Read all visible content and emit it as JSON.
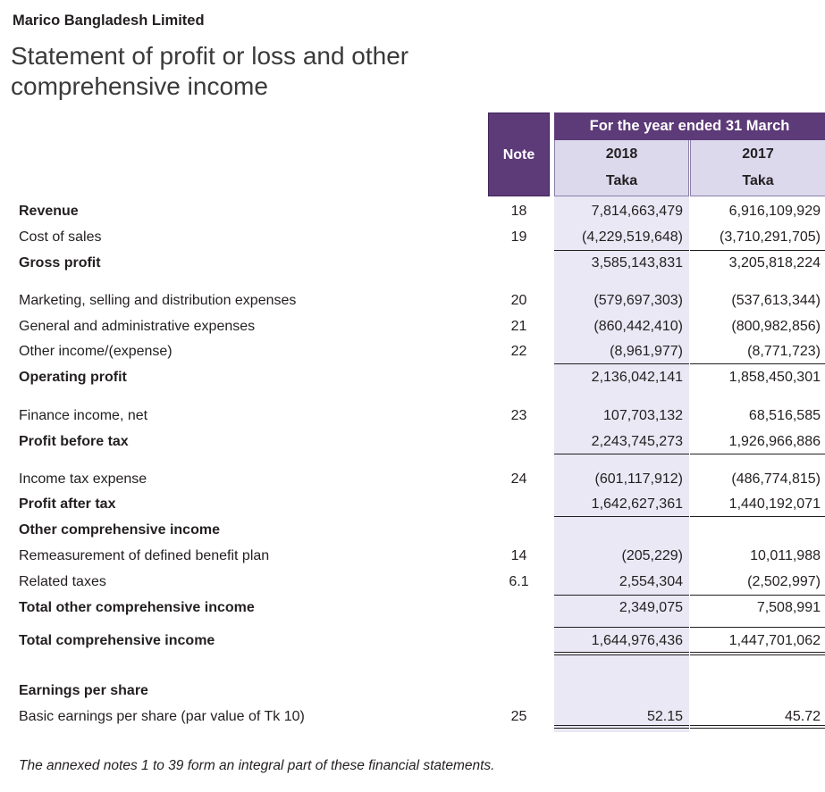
{
  "company": "Marico Bangladesh Limited",
  "title_line1": "Statement of profit or loss and other",
  "title_line2": "comprehensive income",
  "header": {
    "note": "Note",
    "period": "For the year ended 31 March",
    "year_current": "2018",
    "year_prior": "2017",
    "currency_current": "Taka",
    "currency_prior": "Taka"
  },
  "rows": [
    {
      "label": "Revenue",
      "bold": true,
      "note": "18",
      "v2018": "7,814,663,479",
      "v2017": "6,916,109,929"
    },
    {
      "label": "Cost of sales",
      "bold": false,
      "note": "19",
      "v2018": "(4,229,519,648)",
      "v2017": "(3,710,291,705)"
    },
    {
      "label": "Gross profit",
      "bold": true,
      "note": "",
      "v2018": "3,585,143,831",
      "v2017": "3,205,818,224"
    },
    {
      "label": "Marketing, selling and distribution expenses",
      "bold": false,
      "note": "20",
      "v2018": "(579,697,303)",
      "v2017": "(537,613,344)"
    },
    {
      "label": "General and administrative expenses",
      "bold": false,
      "note": "21",
      "v2018": "(860,442,410)",
      "v2017": "(800,982,856)"
    },
    {
      "label": "Other income/(expense)",
      "bold": false,
      "note": "22",
      "v2018": "(8,961,977)",
      "v2017": "(8,771,723)"
    },
    {
      "label": "Operating profit",
      "bold": true,
      "note": "",
      "v2018": "2,136,042,141",
      "v2017": "1,858,450,301"
    },
    {
      "label": "Finance income, net",
      "bold": false,
      "note": "23",
      "v2018": "107,703,132",
      "v2017": "68,516,585"
    },
    {
      "label": "Profit before tax",
      "bold": true,
      "note": "",
      "v2018": "2,243,745,273",
      "v2017": "1,926,966,886"
    },
    {
      "label": "Income tax expense",
      "bold": false,
      "note": "24",
      "v2018": "(601,117,912)",
      "v2017": "(486,774,815)"
    },
    {
      "label": "Profit after tax",
      "bold": true,
      "note": "",
      "v2018": "1,642,627,361",
      "v2017": "1,440,192,071"
    },
    {
      "label": "Other comprehensive income",
      "bold": true,
      "note": "",
      "v2018": "",
      "v2017": ""
    },
    {
      "label": "Remeasurement of defined benefit plan",
      "bold": false,
      "note": "14",
      "v2018": "(205,229)",
      "v2017": "10,011,988"
    },
    {
      "label": "Related taxes",
      "bold": false,
      "note": "6.1",
      "v2018": "2,554,304",
      "v2017": "(2,502,997)"
    },
    {
      "label": "Total other comprehensive income",
      "bold": true,
      "note": "",
      "v2018": "2,349,075",
      "v2017": "7,508,991"
    },
    {
      "label": "Total comprehensive income",
      "bold": true,
      "note": "",
      "v2018": "1,644,976,436",
      "v2017": "1,447,701,062"
    },
    {
      "label": "Earnings per share",
      "bold": true,
      "note": "",
      "v2018": "",
      "v2017": ""
    },
    {
      "label": "Basic earnings per share (par value of Tk 10)",
      "bold": false,
      "note": "25",
      "v2018": "52.15",
      "v2017": "45.72"
    }
  ],
  "footnote": "The annexed notes 1 to 39 form an integral part of these financial statements."
}
